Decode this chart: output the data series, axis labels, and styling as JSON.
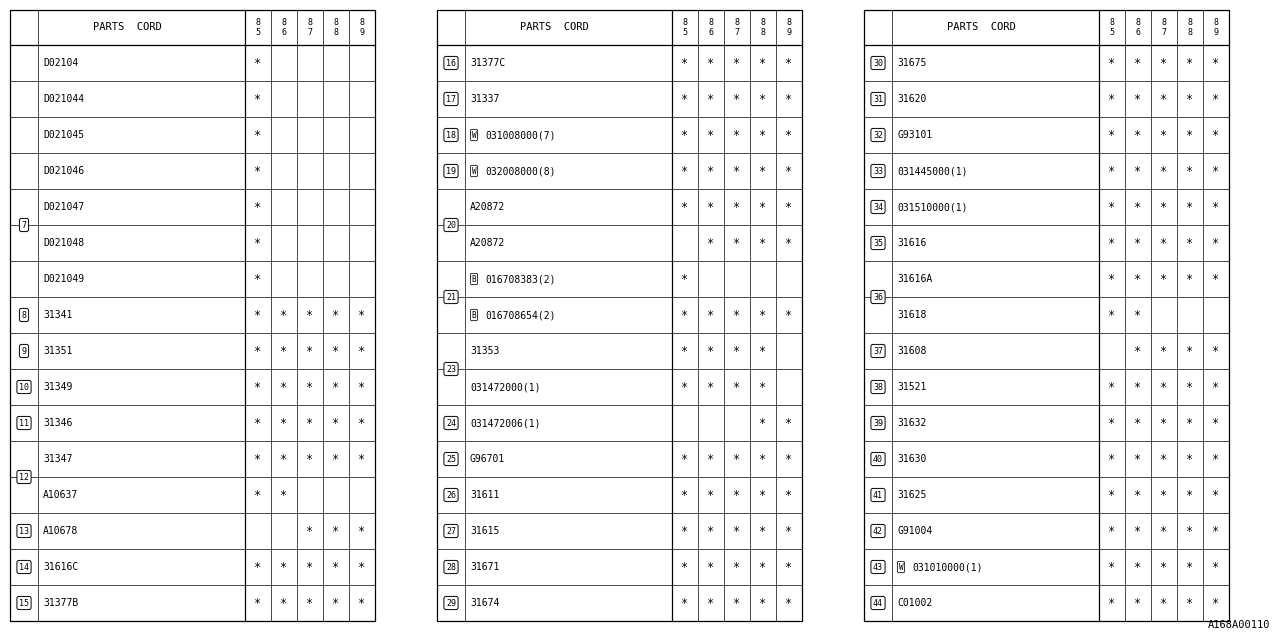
{
  "bg_color": "#ffffff",
  "line_color": "#000000",
  "text_color": "#000000",
  "tables": [
    {
      "rows": [
        {
          "num": "",
          "code": "D02104",
          "marks": [
            1,
            0,
            0,
            0,
            0
          ],
          "prefix": ""
        },
        {
          "num": "",
          "code": "D021044",
          "marks": [
            1,
            0,
            0,
            0,
            0
          ],
          "prefix": ""
        },
        {
          "num": "",
          "code": "D021045",
          "marks": [
            1,
            0,
            0,
            0,
            0
          ],
          "prefix": ""
        },
        {
          "num": "7",
          "code": "D021046",
          "marks": [
            1,
            0,
            0,
            0,
            0
          ],
          "prefix": ""
        },
        {
          "num": "",
          "code": "D021047",
          "marks": [
            1,
            0,
            0,
            0,
            0
          ],
          "prefix": ""
        },
        {
          "num": "",
          "code": "D021048",
          "marks": [
            1,
            0,
            0,
            0,
            0
          ],
          "prefix": ""
        },
        {
          "num": "",
          "code": "D021049",
          "marks": [
            1,
            0,
            0,
            0,
            0
          ],
          "prefix": ""
        },
        {
          "num": "8",
          "code": "31341",
          "marks": [
            1,
            1,
            1,
            1,
            1
          ],
          "prefix": ""
        },
        {
          "num": "9",
          "code": "31351",
          "marks": [
            1,
            1,
            1,
            1,
            1
          ],
          "prefix": ""
        },
        {
          "num": "10",
          "code": "31349",
          "marks": [
            1,
            1,
            1,
            1,
            1
          ],
          "prefix": ""
        },
        {
          "num": "11",
          "code": "31346",
          "marks": [
            1,
            1,
            1,
            1,
            1
          ],
          "prefix": ""
        },
        {
          "num": "12",
          "code": "31347",
          "marks": [
            1,
            1,
            1,
            1,
            1
          ],
          "prefix": ""
        },
        {
          "num": "",
          "code": "A10637",
          "marks": [
            1,
            1,
            0,
            0,
            0
          ],
          "prefix": ""
        },
        {
          "num": "13",
          "code": "A10678",
          "marks": [
            0,
            0,
            1,
            1,
            1
          ],
          "prefix": ""
        },
        {
          "num": "14",
          "code": "31616C",
          "marks": [
            1,
            1,
            1,
            1,
            1
          ],
          "prefix": ""
        },
        {
          "num": "15",
          "code": "31377B",
          "marks": [
            1,
            1,
            1,
            1,
            1
          ],
          "prefix": ""
        }
      ]
    },
    {
      "rows": [
        {
          "num": "16",
          "code": "31377C",
          "marks": [
            1,
            1,
            1,
            1,
            1
          ],
          "prefix": ""
        },
        {
          "num": "17",
          "code": "31337",
          "marks": [
            1,
            1,
            1,
            1,
            1
          ],
          "prefix": ""
        },
        {
          "num": "18",
          "code": "031008000(7)",
          "marks": [
            1,
            1,
            1,
            1,
            1
          ],
          "prefix": "W"
        },
        {
          "num": "19",
          "code": "032008000(8)",
          "marks": [
            1,
            1,
            1,
            1,
            1
          ],
          "prefix": "W"
        },
        {
          "num": "20",
          "code": "A20872",
          "marks": [
            1,
            1,
            1,
            1,
            1
          ],
          "prefix": ""
        },
        {
          "num": "",
          "code": "A20872",
          "marks": [
            0,
            1,
            1,
            1,
            1
          ],
          "prefix": ""
        },
        {
          "num": "21",
          "code": "016708383(2)",
          "marks": [
            1,
            0,
            0,
            0,
            0
          ],
          "prefix": "B"
        },
        {
          "num": "",
          "code": "016708654(2)",
          "marks": [
            1,
            1,
            1,
            1,
            1
          ],
          "prefix": "B"
        },
        {
          "num": "23",
          "code": "31353",
          "marks": [
            1,
            1,
            1,
            1,
            0
          ],
          "prefix": ""
        },
        {
          "num": "",
          "code": "031472000(1)",
          "marks": [
            1,
            1,
            1,
            1,
            0
          ],
          "prefix": ""
        },
        {
          "num": "24",
          "code": "031472006(1)",
          "marks": [
            0,
            0,
            0,
            1,
            1
          ],
          "prefix": ""
        },
        {
          "num": "25",
          "code": "G96701",
          "marks": [
            1,
            1,
            1,
            1,
            1
          ],
          "prefix": ""
        },
        {
          "num": "26",
          "code": "31611",
          "marks": [
            1,
            1,
            1,
            1,
            1
          ],
          "prefix": ""
        },
        {
          "num": "27",
          "code": "31615",
          "marks": [
            1,
            1,
            1,
            1,
            1
          ],
          "prefix": ""
        },
        {
          "num": "28",
          "code": "31671",
          "marks": [
            1,
            1,
            1,
            1,
            1
          ],
          "prefix": ""
        },
        {
          "num": "29",
          "code": "31674",
          "marks": [
            1,
            1,
            1,
            1,
            1
          ],
          "prefix": ""
        }
      ]
    },
    {
      "rows": [
        {
          "num": "30",
          "code": "31675",
          "marks": [
            1,
            1,
            1,
            1,
            1
          ],
          "prefix": ""
        },
        {
          "num": "31",
          "code": "31620",
          "marks": [
            1,
            1,
            1,
            1,
            1
          ],
          "prefix": ""
        },
        {
          "num": "32",
          "code": "G93101",
          "marks": [
            1,
            1,
            1,
            1,
            1
          ],
          "prefix": ""
        },
        {
          "num": "33",
          "code": "031445000(1)",
          "marks": [
            1,
            1,
            1,
            1,
            1
          ],
          "prefix": ""
        },
        {
          "num": "34",
          "code": "031510000(1)",
          "marks": [
            1,
            1,
            1,
            1,
            1
          ],
          "prefix": ""
        },
        {
          "num": "35",
          "code": "31616",
          "marks": [
            1,
            1,
            1,
            1,
            1
          ],
          "prefix": ""
        },
        {
          "num": "36",
          "code": "31616A",
          "marks": [
            1,
            1,
            1,
            1,
            1
          ],
          "prefix": ""
        },
        {
          "num": "",
          "code": "31618",
          "marks": [
            1,
            1,
            0,
            0,
            0
          ],
          "prefix": ""
        },
        {
          "num": "37",
          "code": "31608",
          "marks": [
            0,
            1,
            1,
            1,
            1
          ],
          "prefix": ""
        },
        {
          "num": "38",
          "code": "31521",
          "marks": [
            1,
            1,
            1,
            1,
            1
          ],
          "prefix": ""
        },
        {
          "num": "39",
          "code": "31632",
          "marks": [
            1,
            1,
            1,
            1,
            1
          ],
          "prefix": ""
        },
        {
          "num": "40",
          "code": "31630",
          "marks": [
            1,
            1,
            1,
            1,
            1
          ],
          "prefix": ""
        },
        {
          "num": "41",
          "code": "31625",
          "marks": [
            1,
            1,
            1,
            1,
            1
          ],
          "prefix": ""
        },
        {
          "num": "42",
          "code": "G91004",
          "marks": [
            1,
            1,
            1,
            1,
            1
          ],
          "prefix": ""
        },
        {
          "num": "43",
          "code": "031010000(1)",
          "marks": [
            1,
            1,
            1,
            1,
            1
          ],
          "prefix": "W"
        },
        {
          "num": "44",
          "code": "C01002",
          "marks": [
            1,
            1,
            1,
            1,
            1
          ],
          "prefix": ""
        }
      ]
    }
  ],
  "col_headers": [
    "85",
    "86",
    "87",
    "88",
    "89"
  ],
  "footer_text": "A168A00110",
  "font_size": 7.0,
  "star_size": 8.5,
  "circle_font_size": 6.0,
  "prefix_font_size": 5.5,
  "header_font_size": 7.5
}
